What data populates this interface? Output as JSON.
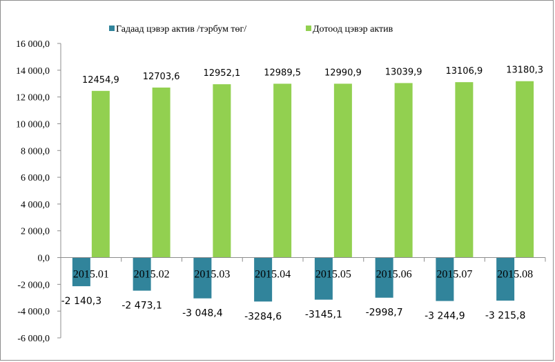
{
  "chart_data": {
    "type": "bar",
    "categories": [
      "2015.01",
      "2015.02",
      "2015.03",
      "2015.04",
      "2015.05",
      "2015.06",
      "2015.07",
      "2015.08"
    ],
    "series": [
      {
        "name": "Гадаад цэвэр актив /тэрбум төг/",
        "color": "#31849b",
        "values": [
          -2140.3,
          -2473.1,
          -3048.4,
          -3284.6,
          -3145.1,
          -2998.7,
          -3244.9,
          -3215.8
        ],
        "labels": [
          "-2 140,3",
          "-2 473,1",
          "-3 048,4",
          "-3284,6",
          "-3145,1",
          "-2998,7",
          "-3 244,9",
          "-3 215,8"
        ]
      },
      {
        "name": "Дотоод цэвэр актив",
        "color": "#92d050",
        "values": [
          12454.9,
          12703.6,
          12952.1,
          12989.5,
          12990.9,
          13039.9,
          13106.9,
          13180.3
        ],
        "labels": [
          "12454,9",
          "12703,6",
          "12952,1",
          "12989,5",
          "12990,9",
          "13039,9",
          "13106,9",
          "13180,3"
        ]
      }
    ],
    "ylim": [
      -6000,
      16000
    ],
    "yticks": [
      {
        "value": 16000,
        "label": "16 000,0"
      },
      {
        "value": 14000,
        "label": "14 000,0"
      },
      {
        "value": 12000,
        "label": "12 000,0"
      },
      {
        "value": 10000,
        "label": "10 000,0"
      },
      {
        "value": 8000,
        "label": "8 000,0"
      },
      {
        "value": 6000,
        "label": "6 000,0"
      },
      {
        "value": 4000,
        "label": "4 000,0"
      },
      {
        "value": 2000,
        "label": "2 000,0"
      },
      {
        "value": 0,
        "label": "0,0"
      },
      {
        "value": -2000,
        "label": "-2 000,0"
      },
      {
        "value": -4000,
        "label": "-4 000,0"
      },
      {
        "value": -6000,
        "label": "-6 000,0"
      }
    ],
    "grid": false,
    "legend": "top"
  }
}
